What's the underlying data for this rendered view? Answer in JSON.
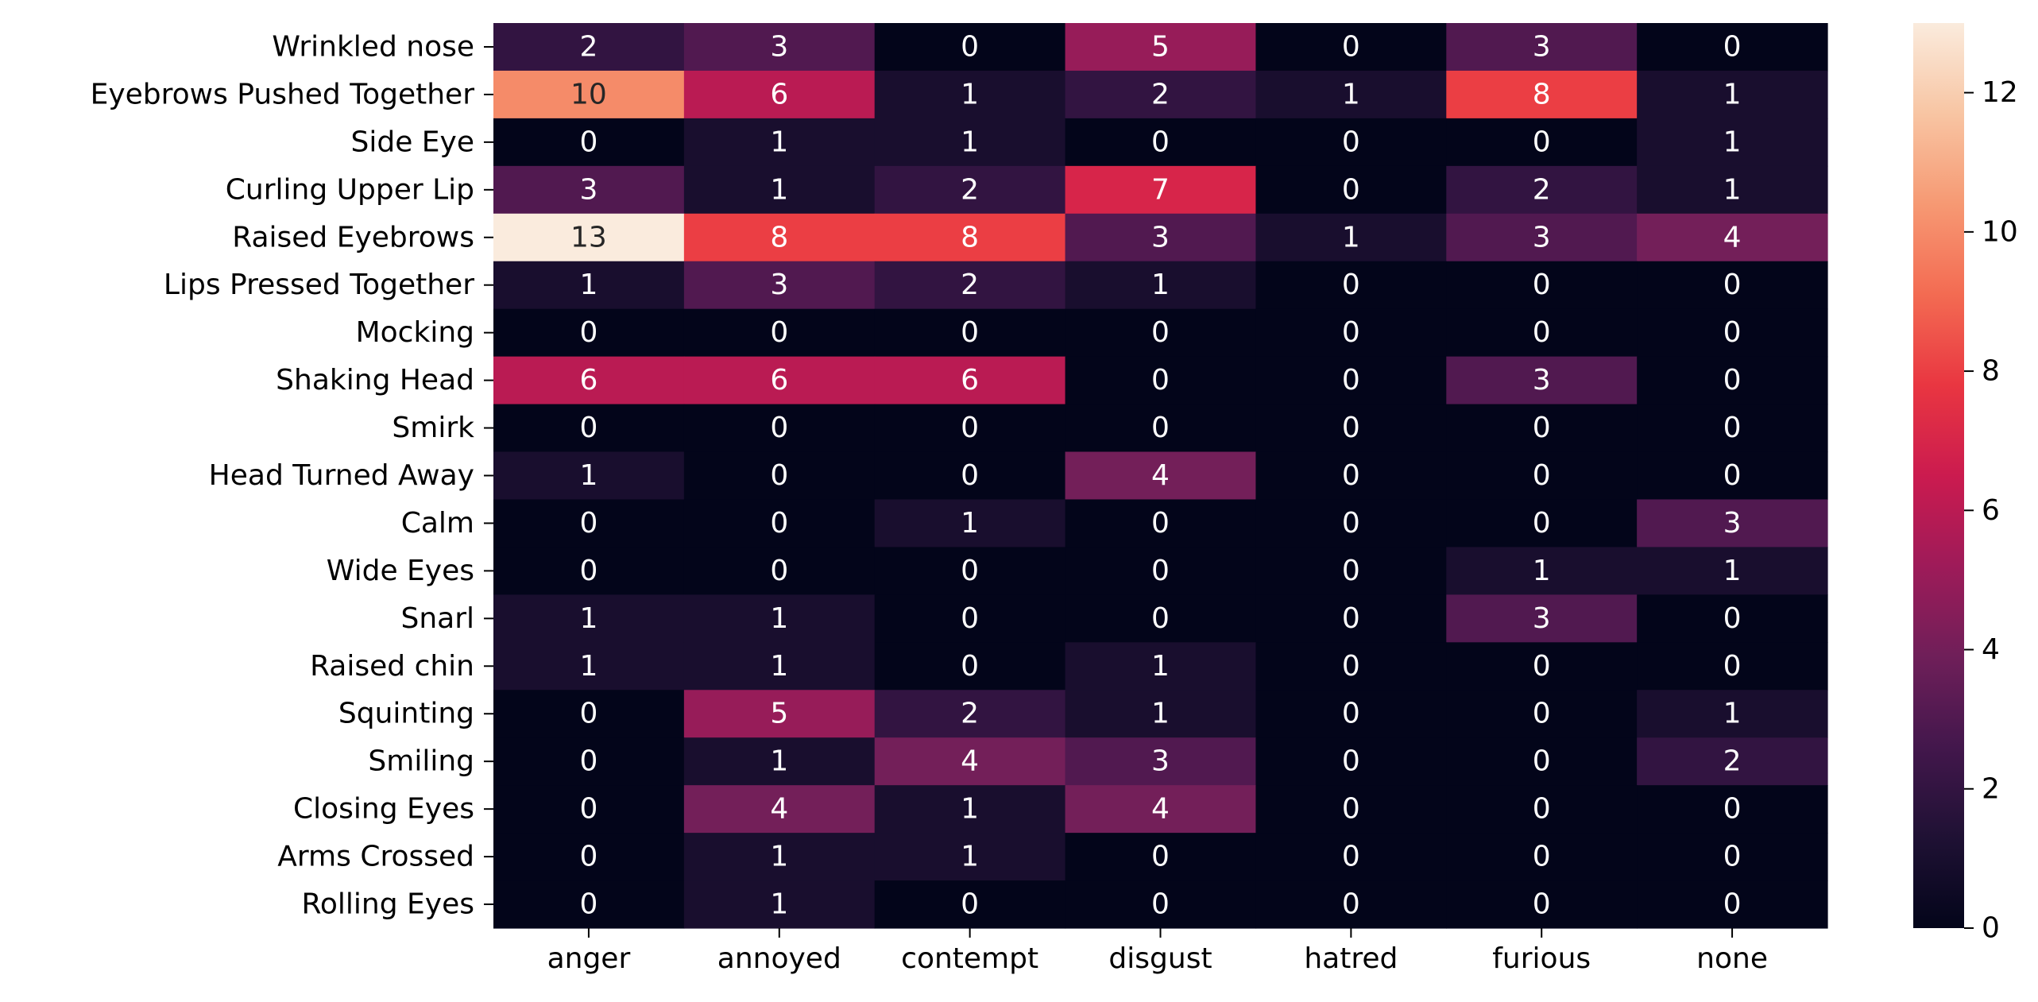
{
  "chart_data": {
    "type": "heatmap",
    "title": "",
    "xlabel": "",
    "ylabel": "",
    "x_categories": [
      "anger",
      "annoyed",
      "contempt",
      "disgust",
      "hatred",
      "furious",
      "none"
    ],
    "y_categories": [
      "Wrinkled nose",
      "Eyebrows Pushed Together",
      "Side Eye",
      "Curling Upper Lip",
      "Raised Eyebrows",
      "Lips Pressed Together",
      "Mocking",
      "Shaking Head",
      "Smirk",
      "Head Turned Away",
      "Calm",
      "Wide Eyes",
      "Snarl",
      "Raised chin",
      "Squinting",
      "Smiling",
      "Closing Eyes",
      "Arms Crossed",
      "Rolling Eyes"
    ],
    "values": [
      [
        2,
        3,
        0,
        5,
        0,
        3,
        0
      ],
      [
        10,
        6,
        1,
        2,
        1,
        8,
        1
      ],
      [
        0,
        1,
        1,
        0,
        0,
        0,
        1
      ],
      [
        3,
        1,
        2,
        7,
        0,
        2,
        1
      ],
      [
        13,
        8,
        8,
        3,
        1,
        3,
        4
      ],
      [
        1,
        3,
        2,
        1,
        0,
        0,
        0
      ],
      [
        0,
        0,
        0,
        0,
        0,
        0,
        0
      ],
      [
        6,
        6,
        6,
        0,
        0,
        3,
        0
      ],
      [
        0,
        0,
        0,
        0,
        0,
        0,
        0
      ],
      [
        1,
        0,
        0,
        4,
        0,
        0,
        0
      ],
      [
        0,
        0,
        1,
        0,
        0,
        0,
        3
      ],
      [
        0,
        0,
        0,
        0,
        0,
        1,
        1
      ],
      [
        1,
        1,
        0,
        0,
        0,
        3,
        0
      ],
      [
        1,
        1,
        0,
        1,
        0,
        0,
        0
      ],
      [
        0,
        5,
        2,
        1,
        0,
        0,
        1
      ],
      [
        0,
        1,
        4,
        3,
        0,
        0,
        2
      ],
      [
        0,
        4,
        1,
        4,
        0,
        0,
        0
      ],
      [
        0,
        1,
        1,
        0,
        0,
        0,
        0
      ],
      [
        0,
        1,
        0,
        0,
        0,
        0,
        0
      ]
    ],
    "value_range": [
      0,
      13
    ],
    "colorbar_ticks": [
      0,
      2,
      4,
      6,
      8,
      10,
      12
    ],
    "colormap": "rocket",
    "annotated": true,
    "grid": false,
    "legend": "colorbar-right"
  }
}
